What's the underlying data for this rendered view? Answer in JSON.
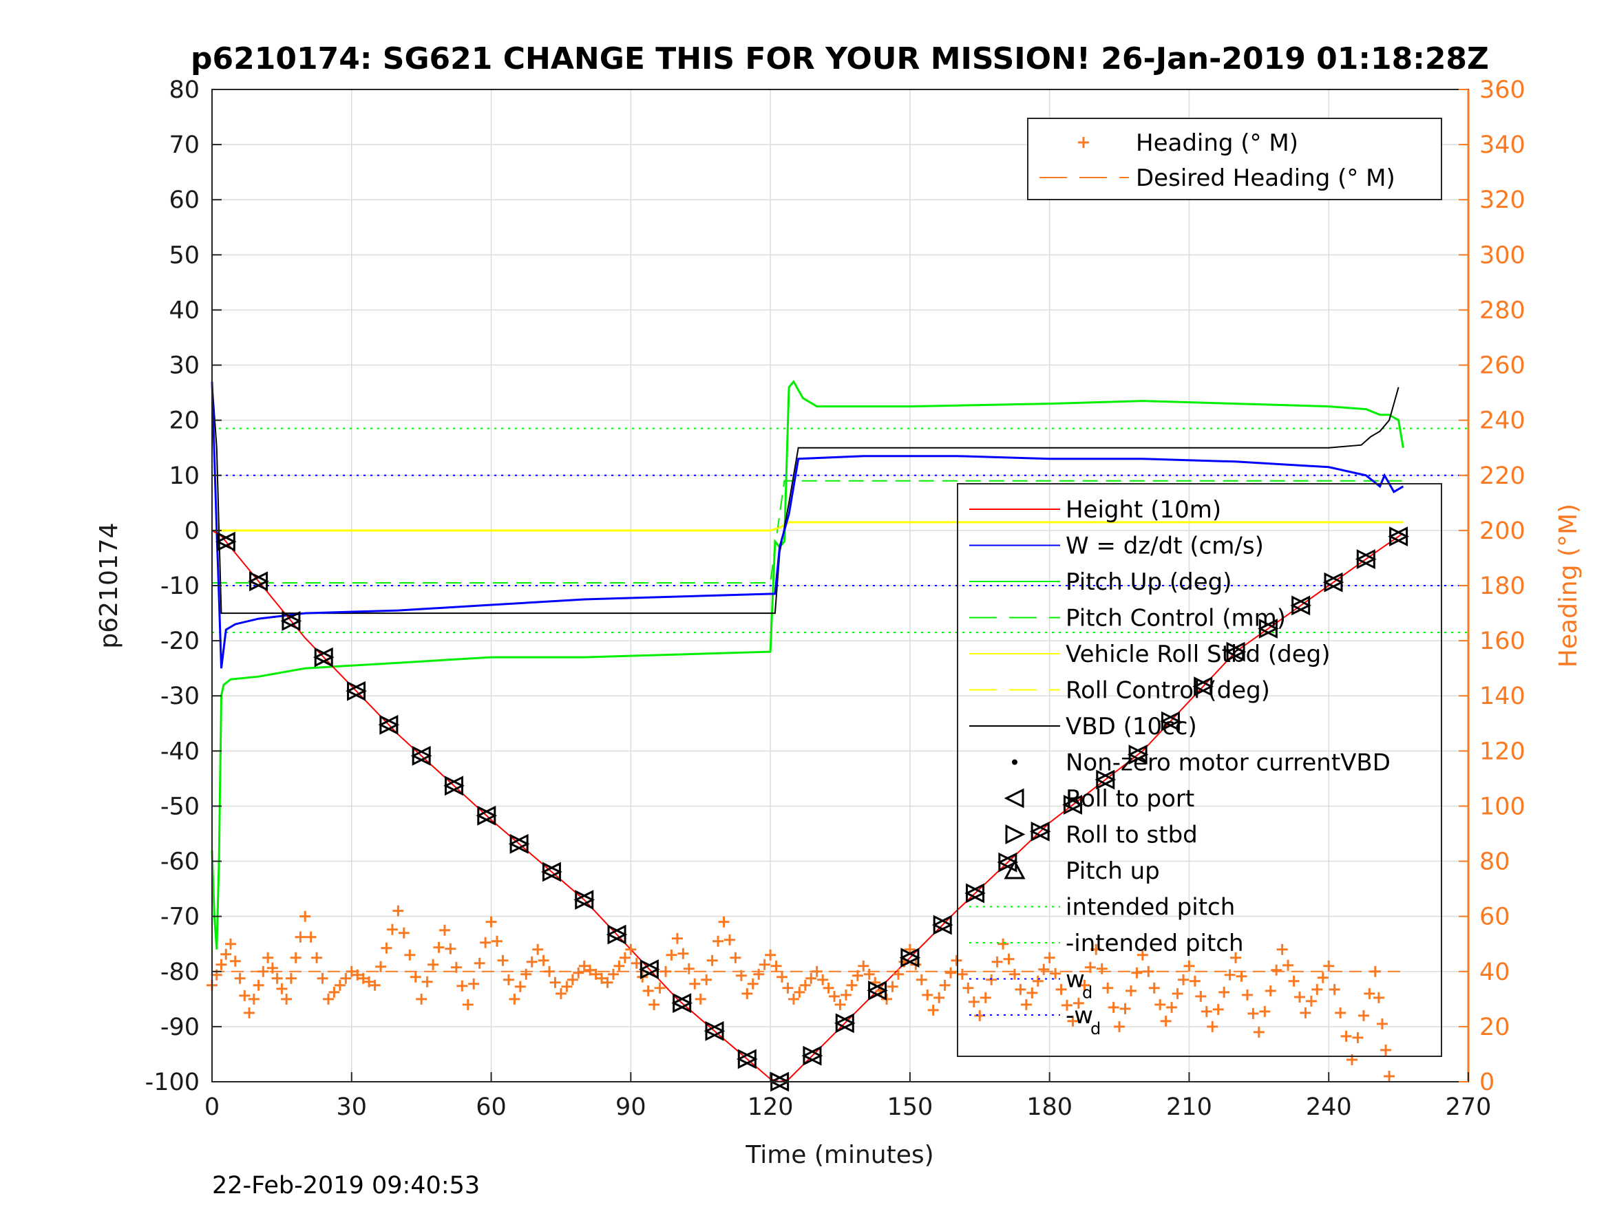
{
  "chart_data": {
    "type": "line",
    "title": "p6210174: SG621 CHANGE THIS FOR YOUR MISSION! 26-Jan-2019 01:18:28Z",
    "xlabel": "Time (minutes)",
    "ylabel": "p6210174",
    "y2label": "Heading (°M)",
    "xlim": [
      0,
      270
    ],
    "ylim": [
      -100,
      80
    ],
    "y2lim": [
      0,
      360
    ],
    "xticks": [
      "0",
      "30",
      "60",
      "90",
      "120",
      "150",
      "180",
      "210",
      "240",
      "270"
    ],
    "yticks": [
      "80",
      "70",
      "60",
      "50",
      "40",
      "30",
      "20",
      "10",
      "0",
      "-10",
      "-20",
      "-30",
      "-40",
      "-50",
      "-60",
      "-70",
      "-80",
      "-90",
      "-100"
    ],
    "y2ticks": [
      "360",
      "340",
      "320",
      "300",
      "280",
      "260",
      "240",
      "220",
      "200",
      "180",
      "160",
      "140",
      "120",
      "100",
      "80",
      "60",
      "40",
      "20",
      "0"
    ],
    "grid": true,
    "timestamp": "22-Feb-2019 09:40:53",
    "colors": {
      "height": "#ff0000",
      "w": "#0000ff",
      "pitch": "#00ee00",
      "roll": "#ffff00",
      "vbd": "#000000",
      "heading": "#f97a22"
    },
    "legend_heading": {
      "placement": "top-right",
      "entries": [
        "Heading (° M)",
        "Desired Heading (° M)"
      ]
    },
    "legend_main": {
      "placement": "right",
      "entries": [
        "Height (10m)",
        "W = dz/dt (cm/s)",
        "Pitch Up (deg)",
        "Pitch Control (mm)",
        "Vehicle Roll Stbd (deg)",
        "Roll Control (deg)",
        "VBD (10cc)",
        "Non-zero motor currentVBD",
        "Roll to port",
        "Roll to stbd",
        "Pitch up",
        "intended pitch",
        "-intended pitch",
        "w",
        "-w"
      ],
      "subscript": "d"
    },
    "series": [
      {
        "name": "Height (10m)",
        "x": [
          0,
          2,
          20,
          40,
          60,
          80,
          100,
          120,
          122,
          124,
          140,
          160,
          180,
          200,
          220,
          240,
          250,
          256
        ],
        "y": [
          0,
          -1,
          -19.5,
          -37,
          -52.5,
          -67,
          -85,
          -99.5,
          -100,
          -99.5,
          -86,
          -69,
          -53,
          -40,
          -22,
          -10,
          -4,
          -0.5
        ]
      },
      {
        "name": "W = dz/dt (cm/s)",
        "x": [
          0,
          1,
          1.5,
          2,
          3,
          5,
          10,
          20,
          40,
          60,
          80,
          100,
          120,
          121,
          122,
          124,
          126,
          140,
          160,
          180,
          200,
          220,
          240,
          248,
          251,
          252,
          254,
          256
        ],
        "y": [
          27,
          0,
          -12,
          -25,
          -18,
          -17,
          -16,
          -15,
          -14.5,
          -13.5,
          -12.5,
          -12,
          -11.5,
          -11.5,
          -3,
          3,
          13,
          13.5,
          13.5,
          13,
          13,
          12.5,
          11.5,
          10,
          8,
          10,
          7,
          8
        ]
      },
      {
        "name": "Pitch Up (deg)",
        "x": [
          0,
          0.5,
          1,
          1.5,
          2,
          2.5,
          4,
          10,
          20,
          40,
          60,
          80,
          100,
          120,
          121,
          122,
          123,
          124,
          125,
          127,
          130,
          150,
          180,
          200,
          220,
          240,
          248,
          251,
          253,
          255,
          256
        ],
        "y": [
          -58,
          -70,
          -76,
          -60,
          -30,
          -28,
          -27,
          -26.5,
          -25,
          -24,
          -23,
          -23,
          -22.5,
          -22,
          -2,
          -3,
          -2,
          26,
          27,
          24,
          22.5,
          22.5,
          23,
          23.5,
          23,
          22.5,
          22,
          21,
          21,
          20,
          15
        ]
      },
      {
        "name": "Pitch Control (mm)",
        "x": [
          0,
          120,
          121,
          123,
          256
        ],
        "y": [
          -9.5,
          -9.5,
          -3,
          9,
          9
        ]
      },
      {
        "name": "Vehicle Roll Stbd (deg)",
        "x": [
          0,
          120,
          122,
          124,
          256
        ],
        "y": [
          0,
          0,
          0.5,
          1.5,
          1.5
        ]
      },
      {
        "name": "VBD (10cc)",
        "x": [
          0,
          1,
          1.5,
          2,
          120,
          121,
          122,
          124,
          126,
          200,
          240,
          247,
          249,
          251,
          253,
          254,
          255
        ],
        "y": [
          27,
          15,
          0,
          -15,
          -15,
          -15,
          -4,
          5,
          15,
          15,
          15,
          15.5,
          17,
          18,
          20,
          23,
          26
        ]
      },
      {
        "name": "Heading (° M)",
        "x": [
          0,
          4,
          8,
          12,
          16,
          20,
          25,
          30,
          35,
          40,
          45,
          50,
          55,
          60,
          65,
          70,
          75,
          80,
          85,
          90,
          95,
          100,
          105,
          110,
          115,
          120,
          125,
          130,
          135,
          140,
          145,
          150,
          155,
          160,
          165,
          170,
          175,
          180,
          185,
          190,
          195,
          200,
          205,
          210,
          215,
          220,
          225,
          230,
          235,
          240,
          245,
          250,
          253
        ],
        "y": [
          35,
          50,
          25,
          45,
          30,
          60,
          30,
          40,
          35,
          62,
          30,
          55,
          28,
          58,
          30,
          48,
          32,
          42,
          36,
          48,
          28,
          52,
          30,
          58,
          32,
          46,
          30,
          40,
          28,
          42,
          30,
          48,
          26,
          44,
          24,
          50,
          28,
          45,
          22,
          48,
          20,
          46,
          22,
          42,
          20,
          45,
          18,
          48,
          25,
          42,
          8,
          40,
          2
        ]
      },
      {
        "name": "Desired Heading (° M)",
        "x": [
          0,
          256
        ],
        "y": [
          40,
          40
        ]
      }
    ],
    "reference_lines": {
      "intended_pitch": 18.5,
      "neg_intended_pitch": -18.5,
      "w_d": 10,
      "neg_w_d": -10
    }
  }
}
